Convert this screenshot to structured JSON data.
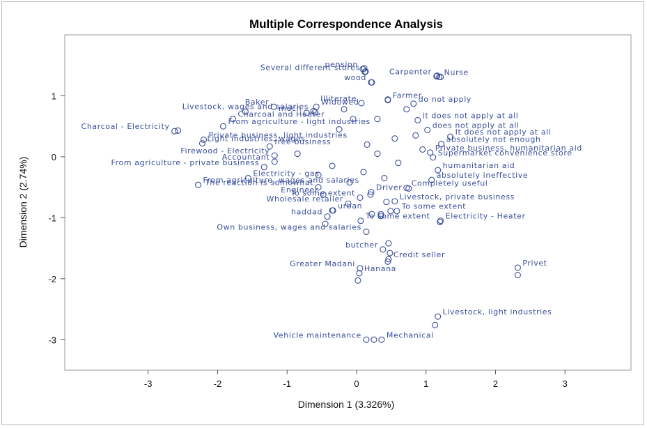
{
  "chart_data": {
    "type": "scatter",
    "title": "Multiple Correspondence Analysis",
    "xlabel": "Dimension 1 (3.326%)",
    "ylabel": "Dimension 2 (2.74%)",
    "xlim": [
      -4.2,
      3.95
    ],
    "ylim": [
      -3.5,
      2.0
    ],
    "xticks": [
      -3,
      -2,
      -1,
      0,
      1,
      2,
      3
    ],
    "yticks": [
      -3,
      -2,
      -1,
      0,
      1
    ],
    "grid": false,
    "colors": {
      "marker": "#3a4f9a",
      "text": "#3a4f9a"
    },
    "points": [
      {
        "label": "pension",
        "x": 0.09,
        "y": 1.44,
        "anchor": "end"
      },
      {
        "label": "Several different stores",
        "x": 0.12,
        "y": 1.39,
        "anchor": "end"
      },
      {
        "label": "Carpenter",
        "x": 1.15,
        "y": 1.32,
        "anchor": "end"
      },
      {
        "label": "Nurse",
        "x": 1.19,
        "y": 1.31,
        "anchor": "start"
      },
      {
        "label": "wood",
        "x": 0.21,
        "y": 1.22,
        "anchor": "end"
      },
      {
        "label": "Farmer",
        "x": 0.45,
        "y": 0.93,
        "anchor": "start"
      },
      {
        "label": "Illiterate",
        "x": 0.07,
        "y": 0.88,
        "anchor": "end"
      },
      {
        "label": "do not apply",
        "x": 0.82,
        "y": 0.87,
        "anchor": "start"
      },
      {
        "label": "Baker",
        "x": -1.19,
        "y": 0.82,
        "anchor": "end"
      },
      {
        "label": "Widowed",
        "x": -0.58,
        "y": 0.82,
        "anchor": "start"
      },
      {
        "label": "Livestock, wages and salaries",
        "x": -0.62,
        "y": 0.75,
        "anchor": "end"
      },
      {
        "label": "much",
        "x": -0.72,
        "y": 0.72,
        "anchor": "end"
      },
      {
        "label": "Charcoal and Heater",
        "x": -1.78,
        "y": 0.62,
        "anchor": "start"
      },
      {
        "label": "From agriculture - light industries",
        "x": -1.92,
        "y": 0.5,
        "anchor": "start"
      },
      {
        "label": "Charcoal - Electricity",
        "x": -2.62,
        "y": 0.42,
        "anchor": "end"
      },
      {
        "label": "Private business, light industries",
        "x": -2.2,
        "y": 0.28,
        "anchor": "start"
      },
      {
        "label": "Light industries, wages",
        "x": -2.22,
        "y": 0.22,
        "anchor": "start"
      },
      {
        "label": "free business",
        "x": -1.25,
        "y": 0.17,
        "anchor": "start"
      },
      {
        "label": "it does not apply at all",
        "x": 0.88,
        "y": 0.6,
        "anchor": "start"
      },
      {
        "label": "does not apply at all",
        "x": 1.02,
        "y": 0.44,
        "anchor": "start"
      },
      {
        "label": "It does not apply at all",
        "x": 1.35,
        "y": 0.33,
        "anchor": "start"
      },
      {
        "label": "absolutely not enough",
        "x": 1.22,
        "y": 0.21,
        "anchor": "start"
      },
      {
        "label": "Private business, humanitarian aid",
        "x": 1.06,
        "y": 0.07,
        "anchor": "start"
      },
      {
        "label": "Supermarket convenience store",
        "x": 1.1,
        "y": -0.01,
        "anchor": "start"
      },
      {
        "label": "Firewood - Electricity",
        "x": -1.18,
        "y": 0.02,
        "anchor": "end"
      },
      {
        "label": "Accountant",
        "x": -1.18,
        "y": -0.08,
        "anchor": "end"
      },
      {
        "label": "From agriculture - private business",
        "x": -1.33,
        "y": -0.17,
        "anchor": "end"
      },
      {
        "label": "humanitarian aid",
        "x": 1.17,
        "y": -0.22,
        "anchor": "start"
      },
      {
        "label": "Electricity - gas",
        "x": -1.56,
        "y": -0.35,
        "anchor": "start"
      },
      {
        "label": "absolutely ineffective",
        "x": 1.08,
        "y": -0.38,
        "anchor": "start"
      },
      {
        "label": "From agriculture, wages and salaries",
        "x": -2.28,
        "y": -0.46,
        "anchor": "start"
      },
      {
        "label": "The reaction is somewhat",
        "x": -0.55,
        "y": -0.5,
        "anchor": "end"
      },
      {
        "label": "Completely useful",
        "x": 0.72,
        "y": -0.51,
        "anchor": "start"
      },
      {
        "label": "Engineer",
        "x": -0.48,
        "y": -0.62,
        "anchor": "end"
      },
      {
        "label": "Driver",
        "x": 0.21,
        "y": -0.58,
        "anchor": "start"
      },
      {
        "label": "To some extent",
        "x": 0.05,
        "y": -0.67,
        "anchor": "end"
      },
      {
        "label": "Livestock, private business",
        "x": 0.55,
        "y": -0.73,
        "anchor": "start"
      },
      {
        "label": "Wholesale retailer",
        "x": -0.12,
        "y": -0.77,
        "anchor": "end"
      },
      {
        "label": "To some extent",
        "x": 0.58,
        "y": -0.89,
        "anchor": "start"
      },
      {
        "label": "urban",
        "x": -0.34,
        "y": -0.88,
        "anchor": "start"
      },
      {
        "label": "haddad",
        "x": -0.42,
        "y": -0.98,
        "anchor": "end"
      },
      {
        "label": "To some extent",
        "x": 0.06,
        "y": -1.05,
        "anchor": "start"
      },
      {
        "label": "Electricity - Heater",
        "x": 1.21,
        "y": -1.05,
        "anchor": "start"
      },
      {
        "label": "Own business, wages and salaries",
        "x": 0.14,
        "y": -1.23,
        "anchor": "end"
      },
      {
        "label": "butcher",
        "x": 0.38,
        "y": -1.52,
        "anchor": "end"
      },
      {
        "label": "Credit seller",
        "x": 0.46,
        "y": -1.68,
        "anchor": "start"
      },
      {
        "label": "Greater Madani",
        "x": 0.05,
        "y": -1.83,
        "anchor": "end"
      },
      {
        "label": "Privet",
        "x": 2.32,
        "y": -1.82,
        "anchor": "start"
      },
      {
        "label": "Hanana",
        "x": 0.04,
        "y": -1.91,
        "anchor": "start"
      },
      {
        "label": "Livestock, light industries",
        "x": 1.17,
        "y": -2.62,
        "anchor": "start"
      },
      {
        "label": "Vehicle maintenance",
        "x": 0.14,
        "y": -3.0,
        "anchor": "end"
      },
      {
        "label": "Mechanical",
        "x": 0.36,
        "y": -3.0,
        "anchor": "start"
      }
    ],
    "extra_markers": [
      {
        "x": 0.11,
        "y": 1.45
      },
      {
        "x": 0.13,
        "y": 1.4
      },
      {
        "x": 1.16,
        "y": 1.33
      },
      {
        "x": 1.21,
        "y": 1.31
      },
      {
        "x": 0.22,
        "y": 1.22
      },
      {
        "x": 0.45,
        "y": 0.94
      },
      {
        "x": 0.72,
        "y": 0.78
      },
      {
        "x": -0.6,
        "y": 0.73
      },
      {
        "x": -0.18,
        "y": 0.78
      },
      {
        "x": 0.3,
        "y": 0.62
      },
      {
        "x": -2.57,
        "y": 0.43
      },
      {
        "x": -1.6,
        "y": 0.74
      },
      {
        "x": 2.32,
        "y": -1.94
      },
      {
        "x": 1.13,
        "y": -2.76
      },
      {
        "x": 0.25,
        "y": -3.0
      },
      {
        "x": 0.02,
        "y": -2.03
      },
      {
        "x": 0.45,
        "y": -1.72
      },
      {
        "x": 0.48,
        "y": -1.58
      },
      {
        "x": 0.46,
        "y": -1.42
      },
      {
        "x": 1.2,
        "y": -1.07
      },
      {
        "x": -0.45,
        "y": -1.1
      },
      {
        "x": -0.35,
        "y": -0.88
      },
      {
        "x": 0.49,
        "y": -0.89
      },
      {
        "x": 0.22,
        "y": -0.94
      },
      {
        "x": 0.35,
        "y": -0.94
      },
      {
        "x": 0.35,
        "y": -0.97
      },
      {
        "x": 0.43,
        "y": -0.74
      },
      {
        "x": -0.48,
        "y": -0.62
      },
      {
        "x": 0.75,
        "y": -0.52
      },
      {
        "x": -0.1,
        "y": -0.42
      },
      {
        "x": 0.1,
        "y": -0.25
      },
      {
        "x": -0.35,
        "y": -0.15
      },
      {
        "x": 0.3,
        "y": 0.05
      },
      {
        "x": -0.85,
        "y": 0.05
      },
      {
        "x": 0.55,
        "y": 0.3
      },
      {
        "x": 0.85,
        "y": 0.35
      },
      {
        "x": -0.25,
        "y": 0.45
      },
      {
        "x": 0.15,
        "y": 0.2
      },
      {
        "x": 0.6,
        "y": -0.1
      },
      {
        "x": -0.55,
        "y": -0.3
      },
      {
        "x": 0.95,
        "y": 0.12
      },
      {
        "x": -0.05,
        "y": 0.62
      },
      {
        "x": 0.4,
        "y": -0.35
      },
      {
        "x": 0.2,
        "y": -0.62
      }
    ]
  }
}
